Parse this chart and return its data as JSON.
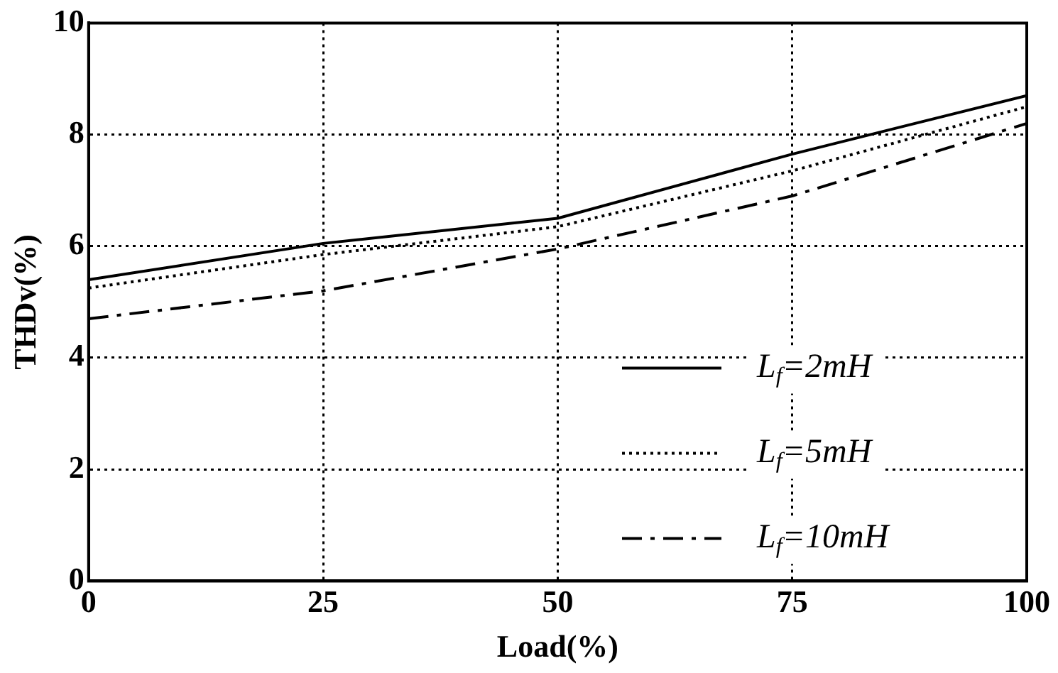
{
  "chart_data": {
    "type": "line",
    "xlabel": "Load(%)",
    "ylabel": "THDv(%)",
    "x": [
      0,
      25,
      50,
      75,
      100
    ],
    "series": [
      {
        "name": "L$_{f}$=2mH",
        "color": "#000000",
        "line_style": "solid",
        "values": [
          5.4,
          6.05,
          6.5,
          7.65,
          8.7
        ]
      },
      {
        "name": "L$_{f}$=5mH",
        "color": "#000000",
        "line_style": "dotted",
        "values": [
          5.25,
          5.85,
          6.35,
          7.35,
          8.5
        ]
      },
      {
        "name": "L$_{f}$=10mH",
        "color": "#000000",
        "line_style": "dashdot",
        "values": [
          4.7,
          5.2,
          5.95,
          6.9,
          8.2
        ]
      }
    ],
    "xlim": [
      0,
      100
    ],
    "xticks": [
      0,
      25,
      50,
      75,
      100
    ],
    "ylim": [
      0,
      10
    ],
    "yticks": [
      0,
      2,
      4,
      6,
      8,
      10
    ],
    "grid": true,
    "legend": "bottom right",
    "marker": "none"
  }
}
